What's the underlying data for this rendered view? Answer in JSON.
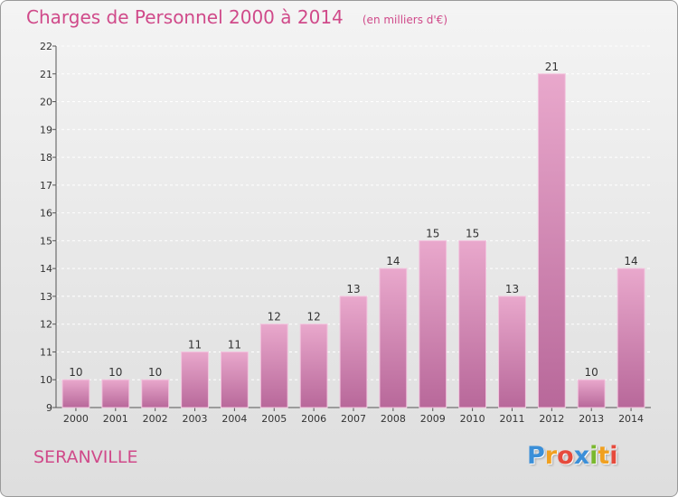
{
  "header": {
    "title": "Charges de Personnel 2000 à 2014",
    "unit": "(en milliers d'€)"
  },
  "footer": {
    "commune": "SERANVILLE",
    "brand": [
      {
        "ch": "P",
        "color": "#3b8fd8"
      },
      {
        "ch": "r",
        "color": "#f0a020"
      },
      {
        "ch": "o",
        "color": "#e64a3c"
      },
      {
        "ch": "x",
        "color": "#3b8fd8"
      },
      {
        "ch": "i",
        "color": "#7ab82e"
      },
      {
        "ch": "t",
        "color": "#f0a020"
      },
      {
        "ch": "i",
        "color": "#e64a3c"
      }
    ]
  },
  "colors": {
    "accent": "#d04a8a",
    "bar_top": "#e9a8cc",
    "bar_bottom": "#b8689a"
  },
  "chart_data": {
    "type": "bar",
    "title": "Charges de Personnel 2000 à 2014",
    "subtitle": "(en milliers d'€)",
    "xlabel": "",
    "ylabel": "",
    "categories": [
      "2000",
      "2001",
      "2002",
      "2003",
      "2004",
      "2005",
      "2006",
      "2007",
      "2008",
      "2009",
      "2010",
      "2011",
      "2012",
      "2013",
      "2014"
    ],
    "values": [
      10,
      10,
      10,
      11,
      11,
      12,
      12,
      13,
      14,
      15,
      15,
      13,
      21,
      10,
      14
    ],
    "ylim": [
      9,
      22
    ],
    "yticks": [
      9,
      10,
      11,
      12,
      13,
      14,
      15,
      16,
      17,
      18,
      19,
      20,
      21,
      22
    ],
    "grid": true,
    "legend": "none"
  }
}
